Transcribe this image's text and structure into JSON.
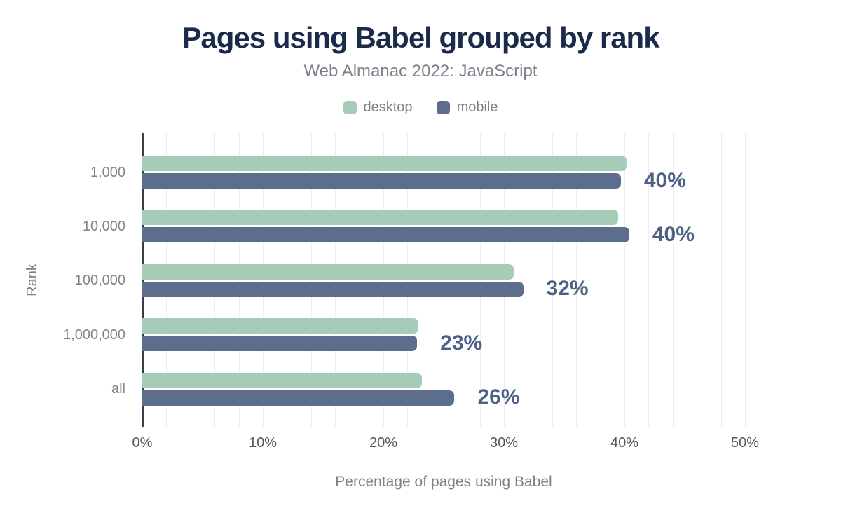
{
  "chart_data": {
    "type": "bar",
    "orientation": "horizontal",
    "title": "Pages using Babel grouped by rank",
    "subtitle": "Web Almanac 2022: JavaScript",
    "xlabel": "Percentage of pages using Babel",
    "ylabel": "Rank",
    "categories": [
      "1,000",
      "10,000",
      "100,000",
      "1,000,000",
      "all"
    ],
    "series": [
      {
        "name": "desktop",
        "color": "#a6cbb6",
        "values": [
          40.2,
          39.5,
          30.8,
          22.9,
          23.2
        ]
      },
      {
        "name": "mobile",
        "color": "#5c6e8b",
        "values": [
          39.7,
          40.4,
          31.6,
          22.8,
          25.9
        ]
      }
    ],
    "annotations": {
      "series": "mobile",
      "labels": [
        "40%",
        "40%",
        "32%",
        "23%",
        "26%"
      ]
    },
    "xlim": [
      0,
      50
    ],
    "x_ticks": [
      {
        "value": 0,
        "label": "0%"
      },
      {
        "value": 10,
        "label": "10%"
      },
      {
        "value": 20,
        "label": "20%"
      },
      {
        "value": 30,
        "label": "30%"
      },
      {
        "value": 40,
        "label": "40%"
      },
      {
        "value": 50,
        "label": "50%"
      }
    ],
    "grid": {
      "step": 2,
      "on": true
    },
    "legend_position": "top"
  },
  "colors": {
    "background": "#ffffff",
    "title": "#1a2b4a",
    "muted_text": "#7c818a",
    "category_text": "#808388",
    "tick_text": "#54575d",
    "annotation": "#4d6187",
    "gridline": "#ededf0",
    "axis_line": "#3a3c40"
  }
}
